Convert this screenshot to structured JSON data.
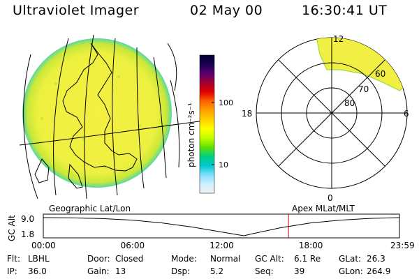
{
  "header": {
    "instrument": "Ultraviolet Imager",
    "date": "02 May 00",
    "time": "16:30:41 UT"
  },
  "globe": {
    "label": "Geographic Lat/Lon"
  },
  "colorbar": {
    "unit_label": "photon cm⁻²s⁻¹",
    "scale": "log",
    "tick_labels": [
      "100",
      "10"
    ],
    "colors": [
      "#000033",
      "#1a0050",
      "#5a0070",
      "#a00030",
      "#e00000",
      "#ff6000",
      "#ffa000",
      "#ffd000",
      "#ffff00",
      "#c0ff00",
      "#60e000",
      "#00d080",
      "#00c8d0",
      "#80e0ff",
      "#d0f0ff",
      "#f0f0f0"
    ]
  },
  "polar": {
    "label": "Apex MLat/MLT",
    "mlt_labels": {
      "top": "12",
      "left": "18",
      "right": "6",
      "bottom": "0"
    },
    "lat_labels": [
      "80",
      "70",
      "60"
    ]
  },
  "chart_data": {
    "type": "line",
    "title": "GC Alt",
    "ylabel": "GC Alt",
    "ytick_labels": [
      "9.0",
      "1.8"
    ],
    "xtick_labels": [
      "00:00",
      "06:00",
      "12:00",
      "18:00",
      "23:59"
    ],
    "x_hours": [
      0,
      2,
      4,
      6,
      8,
      10,
      12,
      13.5,
      14,
      16,
      18,
      20,
      22,
      23.98
    ],
    "y_alt": [
      9.0,
      8.9,
      8.6,
      8.0,
      6.9,
      5.3,
      3.3,
      1.8,
      2.5,
      5.0,
      6.9,
      8.0,
      8.7,
      9.0
    ],
    "ylim": [
      1.8,
      9.0
    ],
    "xlim": [
      0,
      23.98
    ],
    "marker_time_hours": 16.51,
    "marker_color": "#cc0000"
  },
  "footer": {
    "row1": [
      {
        "key": "Flt:",
        "val": "LBHL"
      },
      {
        "key": "Door:",
        "val": "Closed"
      },
      {
        "key": "Mode:",
        "val": "Normal"
      },
      {
        "key": "GC Alt:",
        "val": "6.1 Re"
      },
      {
        "key": "GLat:",
        "val": "26.3"
      }
    ],
    "row2": [
      {
        "key": "IP:",
        "val": "36.0"
      },
      {
        "key": "Gain:",
        "val": "13"
      },
      {
        "key": "Dsp:",
        "val": "5.2"
      },
      {
        "key": "Seq:",
        "val": "39"
      },
      {
        "key": "GLon:",
        "val": "264.9"
      }
    ]
  }
}
